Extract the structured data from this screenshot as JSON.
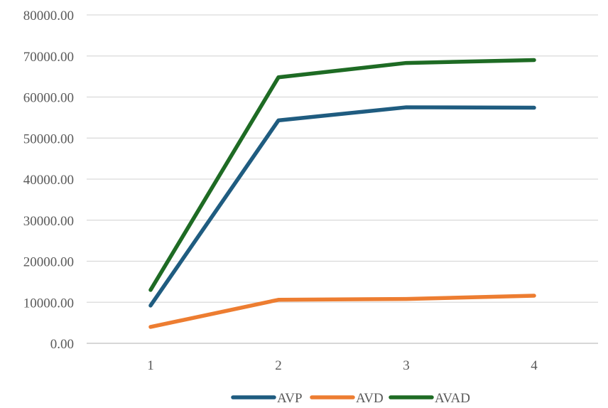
{
  "chart_data": {
    "type": "line",
    "title": "",
    "xlabel": "",
    "ylabel": "",
    "categories": [
      "1",
      "2",
      "3",
      "4"
    ],
    "ylim": [
      0,
      80000
    ],
    "y_ticks": [
      0,
      10000,
      20000,
      30000,
      40000,
      50000,
      60000,
      70000,
      80000
    ],
    "y_tick_labels": [
      "0.00",
      "10000.00",
      "20000.00",
      "30000.00",
      "40000.00",
      "50000.00",
      "60000.00",
      "70000.00",
      "80000.00"
    ],
    "grid": true,
    "legend_position": "bottom",
    "series": [
      {
        "name": "AVP",
        "color": "#1f5c80",
        "values": [
          9200,
          54300,
          57500,
          57400
        ]
      },
      {
        "name": "AVD",
        "color": "#ed7d31",
        "values": [
          4000,
          10600,
          10800,
          11600
        ]
      },
      {
        "name": "AVAD",
        "color": "#1e6b24",
        "values": [
          13000,
          64800,
          68300,
          69000
        ]
      }
    ]
  }
}
